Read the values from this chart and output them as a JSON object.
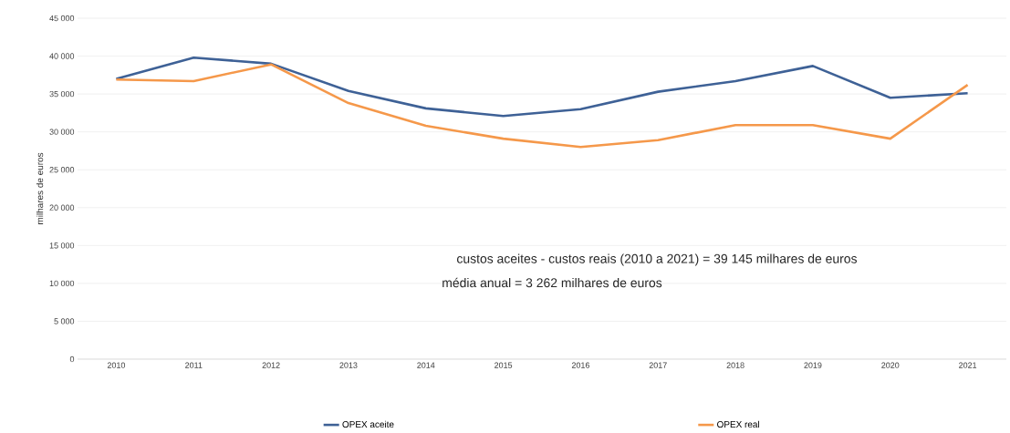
{
  "chart_data": {
    "type": "line",
    "ylabel": "milhares de euros",
    "categories": [
      "2010",
      "2011",
      "2012",
      "2013",
      "2014",
      "2015",
      "2016",
      "2017",
      "2018",
      "2019",
      "2020",
      "2021"
    ],
    "series": [
      {
        "name": "OPEX aceite",
        "color": "#3e6196",
        "values": [
          37000,
          39800,
          39000,
          35400,
          33100,
          32100,
          33000,
          35300,
          36700,
          38700,
          34500,
          35100
        ]
      },
      {
        "name": "OPEX real",
        "color": "#f5984a",
        "values": [
          36900,
          36700,
          38900,
          33800,
          30800,
          29100,
          28000,
          28900,
          30900,
          30900,
          29100,
          36200
        ]
      }
    ],
    "ylim": [
      0,
      45000
    ],
    "yticks": [
      0,
      {
        "value": 5000,
        "label": "5 000"
      },
      {
        "value": 10000,
        "label": "10 000"
      },
      {
        "value": 15000,
        "label": "15 000"
      },
      {
        "value": 20000,
        "label": "20 000"
      },
      {
        "value": 25000,
        "label": "25 000"
      },
      {
        "value": 30000,
        "label": "30 000"
      },
      {
        "value": 35000,
        "label": "35 000"
      },
      {
        "value": 40000,
        "label": "40 000"
      },
      {
        "value": 45000,
        "label": "45 000"
      }
    ],
    "grid": "y",
    "legend": "bottom",
    "line_style": "solid",
    "annotations": [
      "custos aceites - custos reais (2010 a 2021) = 39 145 milhares de euros",
      "média anual = 3 262 milhares de euros"
    ]
  }
}
